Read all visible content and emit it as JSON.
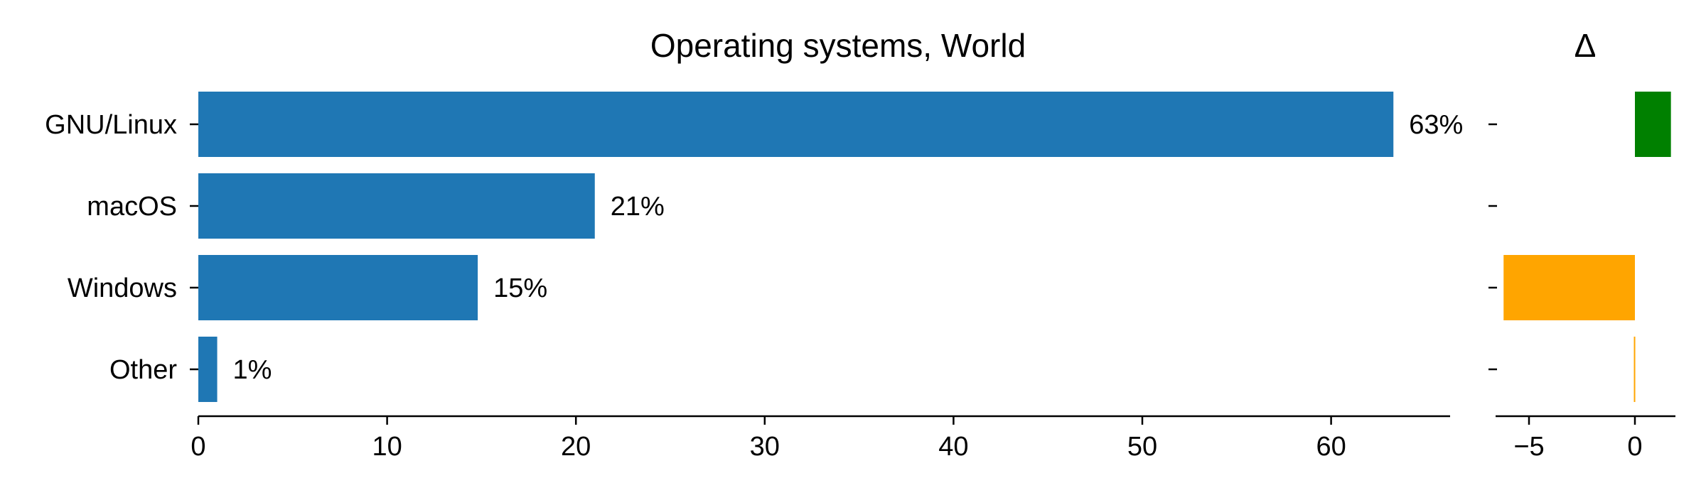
{
  "chart_data": [
    {
      "type": "bar",
      "orientation": "horizontal",
      "title": "Operating systems, World",
      "categories": [
        "GNU/Linux",
        "macOS",
        "Windows",
        "Other"
      ],
      "values": [
        63.3,
        21.0,
        14.8,
        1.0
      ],
      "data_labels": [
        "63%",
        "21%",
        "15%",
        "1%"
      ],
      "xlim": [
        0,
        66.5
      ],
      "xticks": [
        0,
        10,
        20,
        30,
        40,
        50,
        60
      ],
      "xtick_labels": [
        "0",
        "10",
        "20",
        "30",
        "40",
        "50",
        "60"
      ],
      "grid": false,
      "color": "#1f77b4"
    },
    {
      "type": "bar",
      "orientation": "horizontal",
      "title": "Δ",
      "categories": [
        "GNU/Linux",
        "macOS",
        "Windows",
        "Other"
      ],
      "values": [
        1.7,
        0.0,
        -6.2,
        -0.05
      ],
      "colors": [
        "#008000",
        "#ffa500",
        "#ffa500",
        "#ffa500"
      ],
      "xlim": [
        -6.5,
        2.2
      ],
      "xticks": [
        -5,
        0
      ],
      "xtick_labels": [
        "−5",
        "0"
      ],
      "grid": false
    }
  ]
}
